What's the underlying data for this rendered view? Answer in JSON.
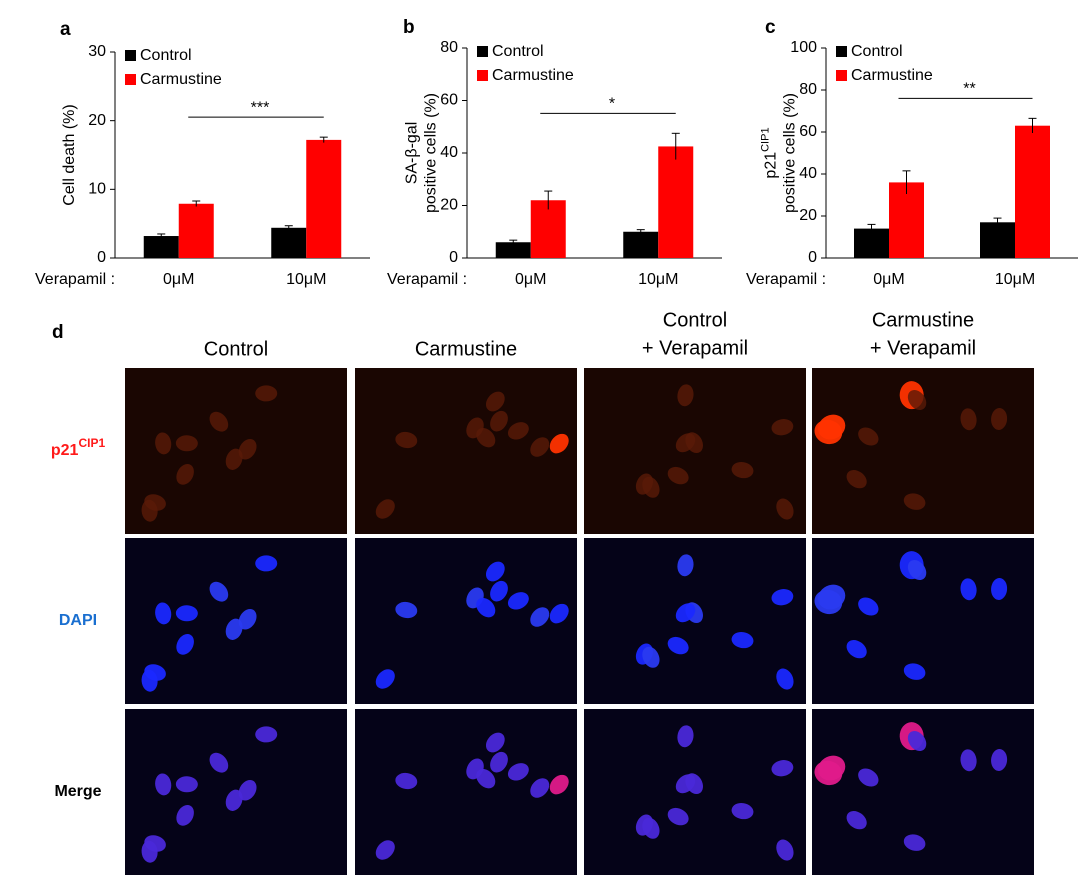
{
  "chart_data": [
    {
      "type": "bar",
      "panel_label": "a",
      "y_label": [
        "Cell death (%)"
      ],
      "x_prefix": "Verapamil :",
      "categories": [
        "0μM",
        "10μM"
      ],
      "ylim": [
        0,
        30
      ],
      "yticks": [
        0,
        10,
        20,
        30
      ],
      "significance": "***",
      "series": [
        {
          "name": "Control",
          "color": "#000000",
          "values": [
            3.2,
            4.4
          ],
          "errors": [
            0.3,
            0.3
          ]
        },
        {
          "name": "Carmustine",
          "color": "#ff0000",
          "values": [
            7.9,
            17.2
          ],
          "errors": [
            0.4,
            0.4
          ]
        }
      ]
    },
    {
      "type": "bar",
      "panel_label": "b",
      "y_label": [
        "SA-β-gal",
        "positive cells (%)"
      ],
      "x_prefix": "Verapamil :",
      "categories": [
        "0μM",
        "10μM"
      ],
      "ylim": [
        0,
        80
      ],
      "yticks": [
        0,
        20,
        40,
        60,
        80
      ],
      "significance": "*",
      "series": [
        {
          "name": "Control",
          "color": "#000000",
          "values": [
            6,
            10
          ],
          "errors": [
            0.8,
            0.8
          ]
        },
        {
          "name": "Carmustine",
          "color": "#ff0000",
          "values": [
            22,
            42.5
          ],
          "errors": [
            3.5,
            5
          ]
        }
      ]
    },
    {
      "type": "bar",
      "panel_label": "c",
      "y_label": [
        "p21",
        "CIP1",
        "positive cells (%)"
      ],
      "x_prefix": "Verapamil :",
      "categories": [
        "0μM",
        "10μM"
      ],
      "ylim": [
        0,
        100
      ],
      "yticks": [
        0,
        20,
        40,
        60,
        80,
        100
      ],
      "significance": "**",
      "series": [
        {
          "name": "Control",
          "color": "#000000",
          "values": [
            14,
            17
          ],
          "errors": [
            2,
            2
          ]
        },
        {
          "name": "Carmustine",
          "color": "#ff0000",
          "values": [
            36,
            63
          ],
          "errors": [
            5.5,
            3.5
          ]
        }
      ]
    }
  ],
  "panel_d": {
    "panel_label": "d",
    "columns": [
      [
        "Control"
      ],
      [
        "Carmustine"
      ],
      [
        "Control",
        "+ Verapamil"
      ],
      [
        "Carmustine",
        "+ Verapamil"
      ]
    ],
    "rows": [
      {
        "label": "p21",
        "sup": "CIP1",
        "color": "#ff1a1a"
      },
      {
        "label": "DAPI",
        "color": "#1a6fd0"
      },
      {
        "label": "Merge",
        "color": "#000000"
      }
    ]
  }
}
